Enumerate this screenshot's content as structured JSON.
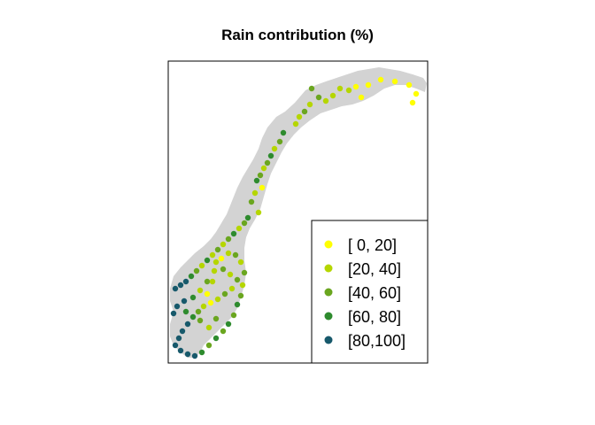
{
  "title": "Rain contribution (%)",
  "legend": {
    "entries": [
      {
        "label": "[ 0, 20]",
        "color": "#ffff00"
      },
      {
        "label": "[20, 40]",
        "color": "#b5d600"
      },
      {
        "label": "[40, 60]",
        "color": "#6aa61f"
      },
      {
        "label": "[60, 80]",
        "color": "#2e8b2e"
      },
      {
        "label": "[80,100]",
        "color": "#17596b"
      }
    ]
  },
  "map": {
    "region": "Norway",
    "land_color": "#d3d3d3"
  }
}
